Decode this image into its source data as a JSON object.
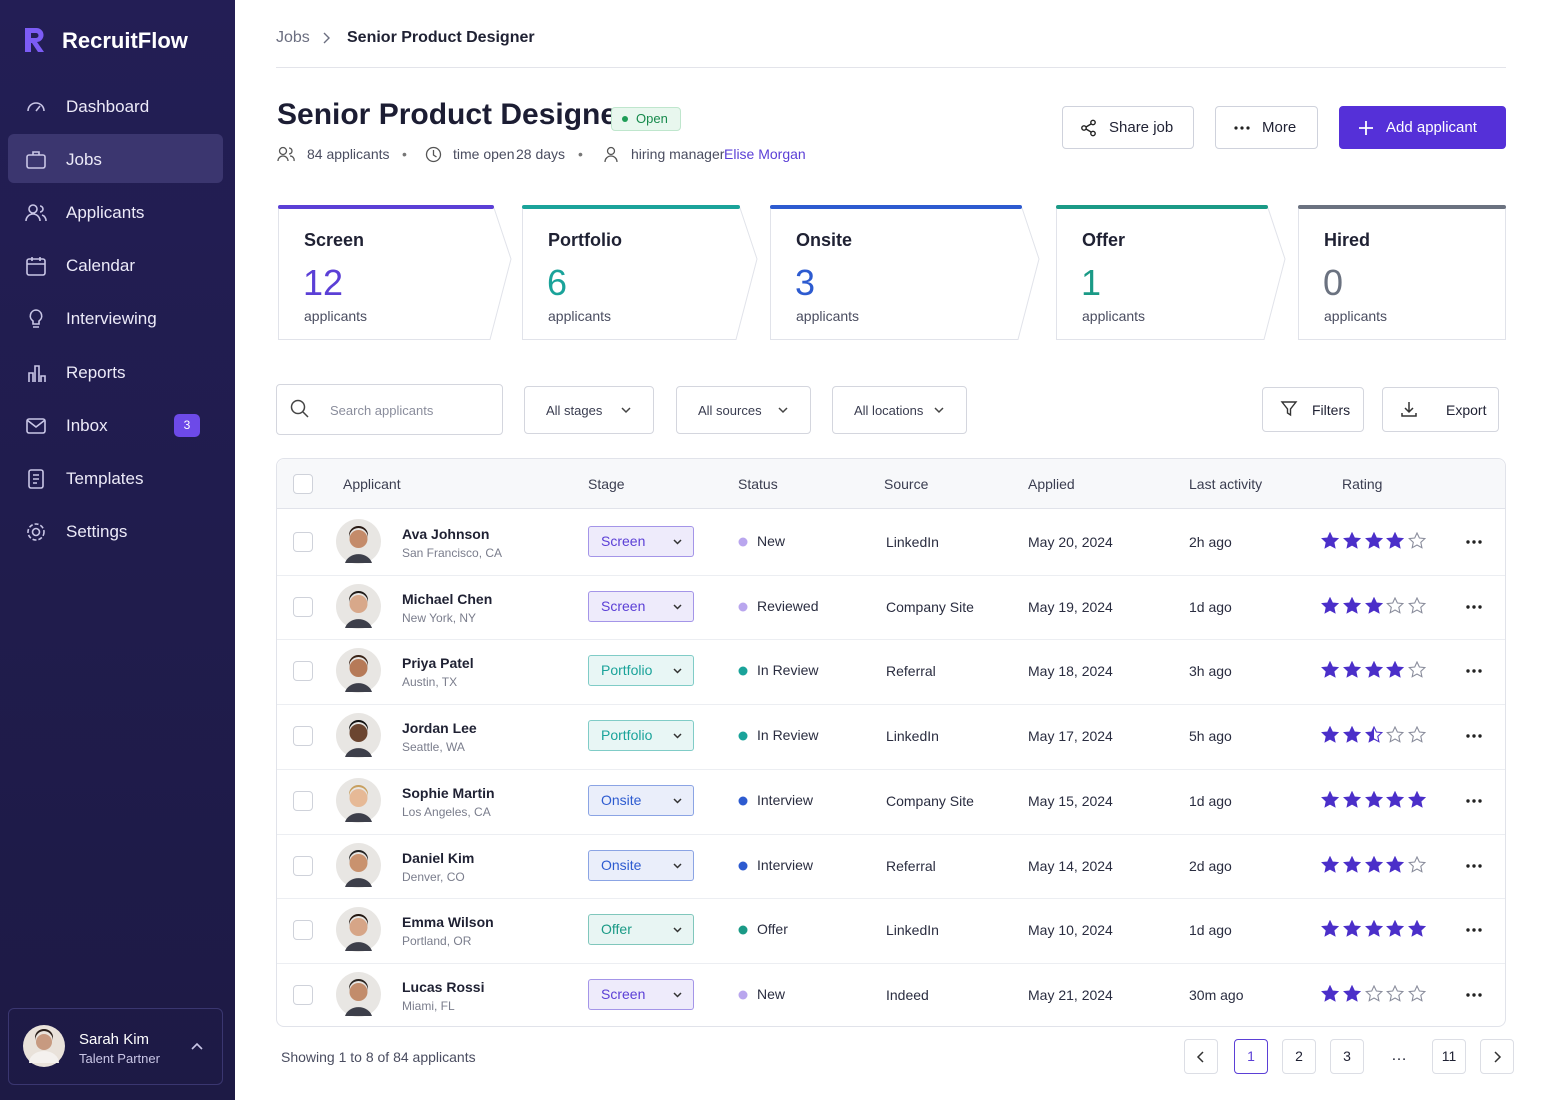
{
  "sidebar": {
    "brand": "RecruitFlow",
    "nav": [
      {
        "label": "Dashboard"
      },
      {
        "label": "Jobs",
        "active": true
      },
      {
        "label": "Applicants"
      },
      {
        "label": "Calendar"
      },
      {
        "label": "Interviewing"
      },
      {
        "label": "Reports"
      },
      {
        "label": "Inbox",
        "badge": 3
      },
      {
        "label": "Templates"
      },
      {
        "label": "Settings"
      }
    ],
    "user": {
      "name": "Sarah Kim",
      "role": "Talent Partner"
    }
  },
  "breadcrumb": [
    "Jobs",
    "Senior Product Designer"
  ],
  "header": {
    "title": "Senior Product Designer",
    "status": "Open",
    "applicants": "84 applicants",
    "time_open_label": "time open",
    "time_open": "28 days",
    "manager_label": "hiring manager",
    "manager": "Elise Morgan"
  },
  "actions": [
    "Share job",
    "More",
    "Add applicant"
  ],
  "stages": [
    {
      "name": "Screen",
      "count": 12,
      "unit": "applicants",
      "color": "#5b3fd6"
    },
    {
      "name": "Portfolio",
      "count": 6,
      "unit": "applicants",
      "color": "#1aa39a"
    },
    {
      "name": "Onsite",
      "count": 3,
      "unit": "applicants",
      "color": "#2d5bd0"
    },
    {
      "name": "Offer",
      "count": 1,
      "unit": "applicants",
      "color": "#1a9a86"
    },
    {
      "name": "Hired",
      "count": 0,
      "unit": "applicants",
      "color": "#6b7280"
    }
  ],
  "filters": {
    "search_placeholder": "Search applicants",
    "selects": [
      "All stages",
      "All sources",
      "All locations"
    ],
    "buttons": [
      "Filters",
      "Export"
    ]
  },
  "table": {
    "columns": [
      "Applicant",
      "Stage",
      "Status",
      "Source",
      "Applied",
      "Last activity",
      "Rating"
    ],
    "rows": [
      {
        "name": "Ava Johnson",
        "location": "San Francisco, CA",
        "stage": "Screen",
        "status": "New",
        "status_color": "#b9a6ee",
        "source": "LinkedIn",
        "applied": "May 20, 2024",
        "last_activity": "2h ago",
        "rating": 4
      },
      {
        "name": "Michael Chen",
        "location": "New York, NY",
        "stage": "Screen",
        "status": "Reviewed",
        "status_color": "#b9a6ee",
        "source": "Company Site",
        "applied": "May 19, 2024",
        "last_activity": "1d ago",
        "rating": 3
      },
      {
        "name": "Priya Patel",
        "location": "Austin, TX",
        "stage": "Portfolio",
        "status": "In Review",
        "status_color": "#1aa39a",
        "source": "Referral",
        "applied": "May 18, 2024",
        "last_activity": "3h ago",
        "rating": 4
      },
      {
        "name": "Jordan Lee",
        "location": "Seattle, WA",
        "stage": "Portfolio",
        "status": "In Review",
        "status_color": "#1aa39a",
        "source": "LinkedIn",
        "applied": "May 17, 2024",
        "last_activity": "5h ago",
        "rating": 2.5
      },
      {
        "name": "Sophie Martin",
        "location": "Los Angeles, CA",
        "stage": "Onsite",
        "status": "Interview",
        "status_color": "#2d5bd0",
        "source": "Company Site",
        "applied": "May 15, 2024",
        "last_activity": "1d ago",
        "rating": 5
      },
      {
        "name": "Daniel Kim",
        "location": "Denver, CO",
        "stage": "Onsite",
        "status": "Interview",
        "status_color": "#2d5bd0",
        "source": "Referral",
        "applied": "May 14, 2024",
        "last_activity": "2d ago",
        "rating": 4
      },
      {
        "name": "Emma Wilson",
        "location": "Portland, OR",
        "stage": "Offer",
        "status": "Offer",
        "status_color": "#1a9a86",
        "source": "LinkedIn",
        "applied": "May 10, 2024",
        "last_activity": "1d ago",
        "rating": 5
      },
      {
        "name": "Lucas Rossi",
        "location": "Miami, FL",
        "stage": "Screen",
        "status": "New",
        "status_color": "#b9a6ee",
        "source": "Indeed",
        "applied": "May 21, 2024",
        "last_activity": "30m ago",
        "rating": 2
      }
    ]
  },
  "footer": {
    "summary": "Showing 1 to 8 of 84 applicants",
    "pages": [
      "1",
      "2",
      "3",
      "…",
      "11"
    ],
    "current": "1"
  }
}
